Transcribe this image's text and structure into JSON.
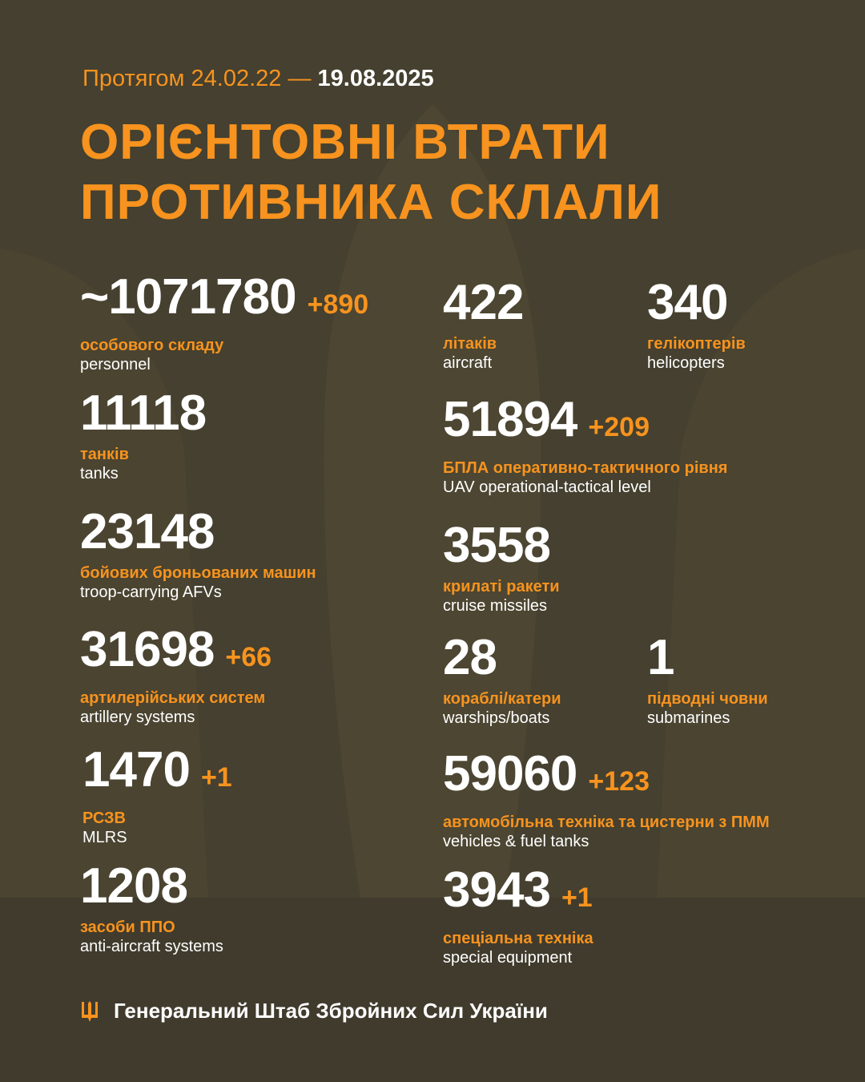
{
  "header": {
    "period_prefix": "Протягом 24.02.22 —",
    "date": "19.08.2025"
  },
  "title": {
    "line1": "ОРІЄНТОВНІ ВТРАТИ",
    "line2": "ПРОТИВНИКА СКЛАЛИ"
  },
  "colors": {
    "accent": "#f7931e",
    "background": "#45402f",
    "text": "#ffffff"
  },
  "items": [
    {
      "value": "~1071780",
      "delta": "+890",
      "ua": "особового складу",
      "en": "personnel"
    },
    {
      "value": "11118",
      "delta": "",
      "ua": "танків",
      "en": "tanks"
    },
    {
      "value": "23148",
      "delta": "",
      "ua": "бойових броньованих машин",
      "en": "troop-carrying AFVs"
    },
    {
      "value": "31698",
      "delta": "+66",
      "ua": "артилерійських систем",
      "en": "artillery systems"
    },
    {
      "value": "1470",
      "delta": "+1",
      "ua": "РСЗВ",
      "en": "MLRS"
    },
    {
      "value": "1208",
      "delta": "",
      "ua": "засоби ППО",
      "en": "anti-aircraft systems"
    },
    {
      "value": "422",
      "delta": "",
      "ua": "літаків",
      "en": "aircraft"
    },
    {
      "value": "340",
      "delta": "",
      "ua": "гелікоптерів",
      "en": "helicopters"
    },
    {
      "value": "51894",
      "delta": "+209",
      "ua": "БПЛА оперативно-тактичного рівня",
      "en": "UAV operational-tactical level"
    },
    {
      "value": "3558",
      "delta": "",
      "ua": "крилаті ракети",
      "en": "cruise missiles"
    },
    {
      "value": "28",
      "delta": "",
      "ua": "кораблі/катери",
      "en": "warships/boats"
    },
    {
      "value": "1",
      "delta": "",
      "ua": "підводні човни",
      "en": "submarines"
    },
    {
      "value": "59060",
      "delta": "+123",
      "ua": "автомобільна техніка та цистерни з ПММ",
      "en": "vehicles & fuel tanks"
    },
    {
      "value": "3943",
      "delta": "+1",
      "ua": "спеціальна техніка",
      "en": "special equipment"
    }
  ],
  "footer": {
    "icon": "trident-icon",
    "text": "Генеральний Штаб Збройних Сил України"
  }
}
